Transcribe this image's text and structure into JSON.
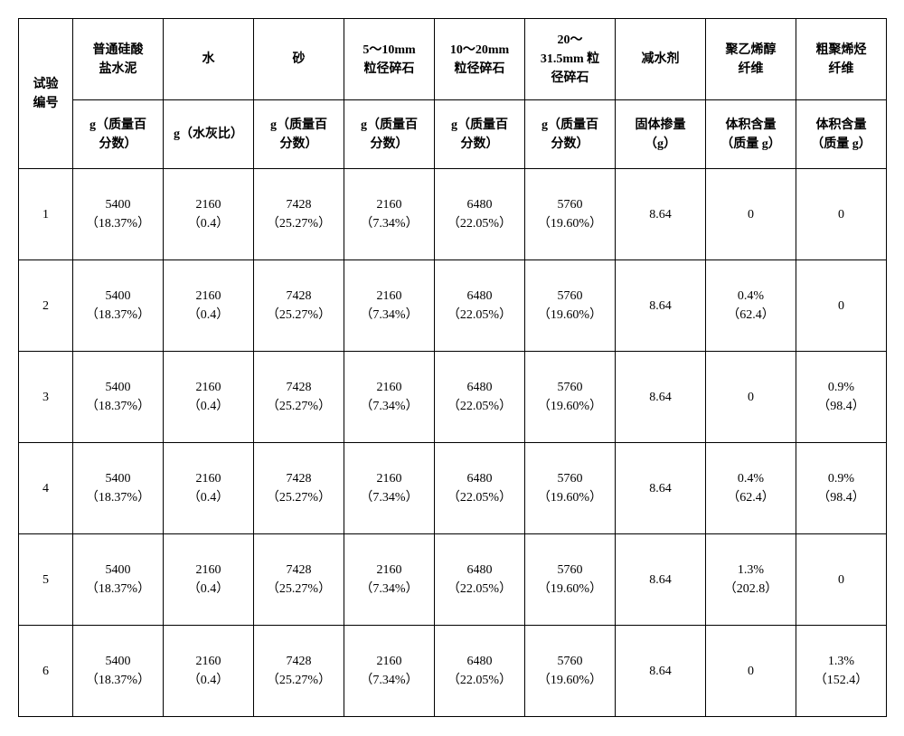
{
  "table": {
    "header": {
      "rowLabel": {
        "top": "试验",
        "bot": "编号"
      },
      "cols": [
        {
          "top": "普通硅酸\n盐水泥",
          "bot": "g（质量百\n分数）"
        },
        {
          "top": "水",
          "bot": "g（水灰比）"
        },
        {
          "top": "砂",
          "bot": "g（质量百\n分数）"
        },
        {
          "top": "5～10mm\n粒径碎石",
          "bot": "g（质量百\n分数）"
        },
        {
          "top": "10～20mm\n粒径碎石",
          "bot": "g（质量百\n分数）"
        },
        {
          "top": "20～\n31.5mm 粒\n径碎石",
          "bot": "g（质量百\n分数）"
        },
        {
          "top": "减水剂",
          "bot": "固体掺量\n（g）"
        },
        {
          "top": "聚乙烯醇\n纤维",
          "bot": "体积含量\n（质量 g）"
        },
        {
          "top": "粗聚烯烃\n纤维",
          "bot": "体积含量\n（质量 g）"
        }
      ]
    },
    "rows": [
      {
        "id": "1",
        "c": [
          "5400\n（18.37%）",
          "2160\n（0.4）",
          "7428\n（25.27%）",
          "2160\n（7.34%）",
          "6480\n（22.05%）",
          "5760\n（19.60%）",
          "8.64",
          "0",
          "0"
        ]
      },
      {
        "id": "2",
        "c": [
          "5400\n（18.37%）",
          "2160\n（0.4）",
          "7428\n（25.27%）",
          "2160\n（7.34%）",
          "6480\n（22.05%）",
          "5760\n（19.60%）",
          "8.64",
          "0.4%\n（62.4）",
          "0"
        ]
      },
      {
        "id": "3",
        "c": [
          "5400\n（18.37%）",
          "2160\n（0.4）",
          "7428\n（25.27%）",
          "2160\n（7.34%）",
          "6480\n（22.05%）",
          "5760\n（19.60%）",
          "8.64",
          "0",
          "0.9%\n（98.4）"
        ]
      },
      {
        "id": "4",
        "c": [
          "5400\n（18.37%）",
          "2160\n（0.4）",
          "7428\n（25.27%）",
          "2160\n（7.34%）",
          "6480\n（22.05%）",
          "5760\n（19.60%）",
          "8.64",
          "0.4%\n（62.4）",
          "0.9%\n（98.4）"
        ]
      },
      {
        "id": "5",
        "c": [
          "5400\n（18.37%）",
          "2160\n（0.4）",
          "7428\n（25.27%）",
          "2160\n（7.34%）",
          "6480\n（22.05%）",
          "5760\n（19.60%）",
          "8.64",
          "1.3%\n（202.8）",
          "0"
        ]
      },
      {
        "id": "6",
        "c": [
          "5400\n（18.37%）",
          "2160\n（0.4）",
          "7428\n（25.27%）",
          "2160\n（7.34%）",
          "6480\n（22.05%）",
          "5760\n（19.60%）",
          "8.64",
          "0",
          "1.3%\n（152.4）"
        ]
      }
    ]
  },
  "style": {
    "border_color": "#000000",
    "background_color": "#ffffff",
    "text_color": "#000000",
    "font_size_pt": 11,
    "font_family": "SimSun"
  }
}
